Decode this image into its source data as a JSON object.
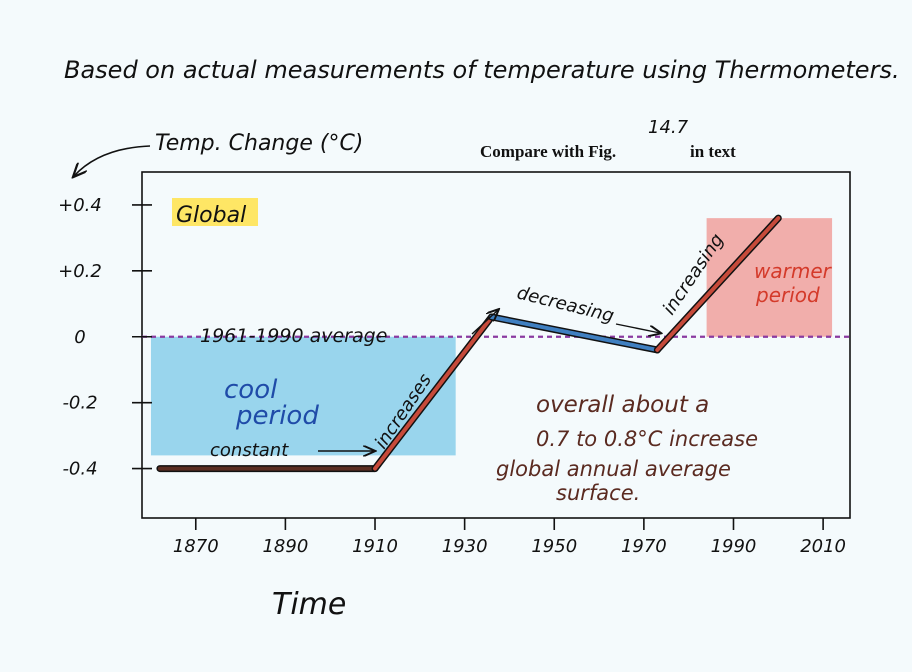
{
  "chart_data": {
    "type": "line",
    "title": "Based on actual measurements of temperature using Thermometers.",
    "ylabel": "Temp. Change (°C)",
    "xlabel": "Time",
    "note": "Compare with Fig.",
    "note_fig": "14.7",
    "note_suffix": "in text",
    "region_label": "Global",
    "x_ticks": [
      1870,
      1890,
      1910,
      1930,
      1950,
      1970,
      1990,
      2010
    ],
    "y_ticks": [
      {
        "value": 0.4,
        "label": "+0.4"
      },
      {
        "value": 0.2,
        "label": "+0.2"
      },
      {
        "value": 0.0,
        "label": "0"
      },
      {
        "value": -0.2,
        "label": "-0.2"
      },
      {
        "value": -0.4,
        "label": "-0.4"
      }
    ],
    "xlim": [
      1858,
      2016
    ],
    "ylim": [
      -0.55,
      0.5
    ],
    "series": [
      {
        "x": [
          1862,
          1910,
          1936,
          1973,
          2000
        ],
        "y": [
          -0.4,
          -0.4,
          0.06,
          -0.04,
          0.36
        ],
        "segment_colors": [
          "#5a2e22",
          "#c64a3a",
          "#3f7fc0",
          "#c64a3a"
        ]
      }
    ],
    "average_line": {
      "value": 0.0,
      "label": "1961-1990 average",
      "color": "#8a3aa0"
    },
    "annotations": {
      "constant": "constant",
      "increases": "increases",
      "decreasing": "decreasing",
      "increasing": "increasing",
      "cool": "cool",
      "period": "period",
      "warmer": "warmer",
      "warmer_period": "period",
      "overall_1": "overall about a",
      "overall_2": "0.7 to 0.8°C increase",
      "overall_3": "global annual average",
      "overall_4": "surface."
    },
    "colors": {
      "cool": "#4fb6e0",
      "warm": "#ee7c74",
      "highlight": "#ffe24a",
      "ink": "#111111",
      "annotation": "#5a2a20"
    }
  }
}
